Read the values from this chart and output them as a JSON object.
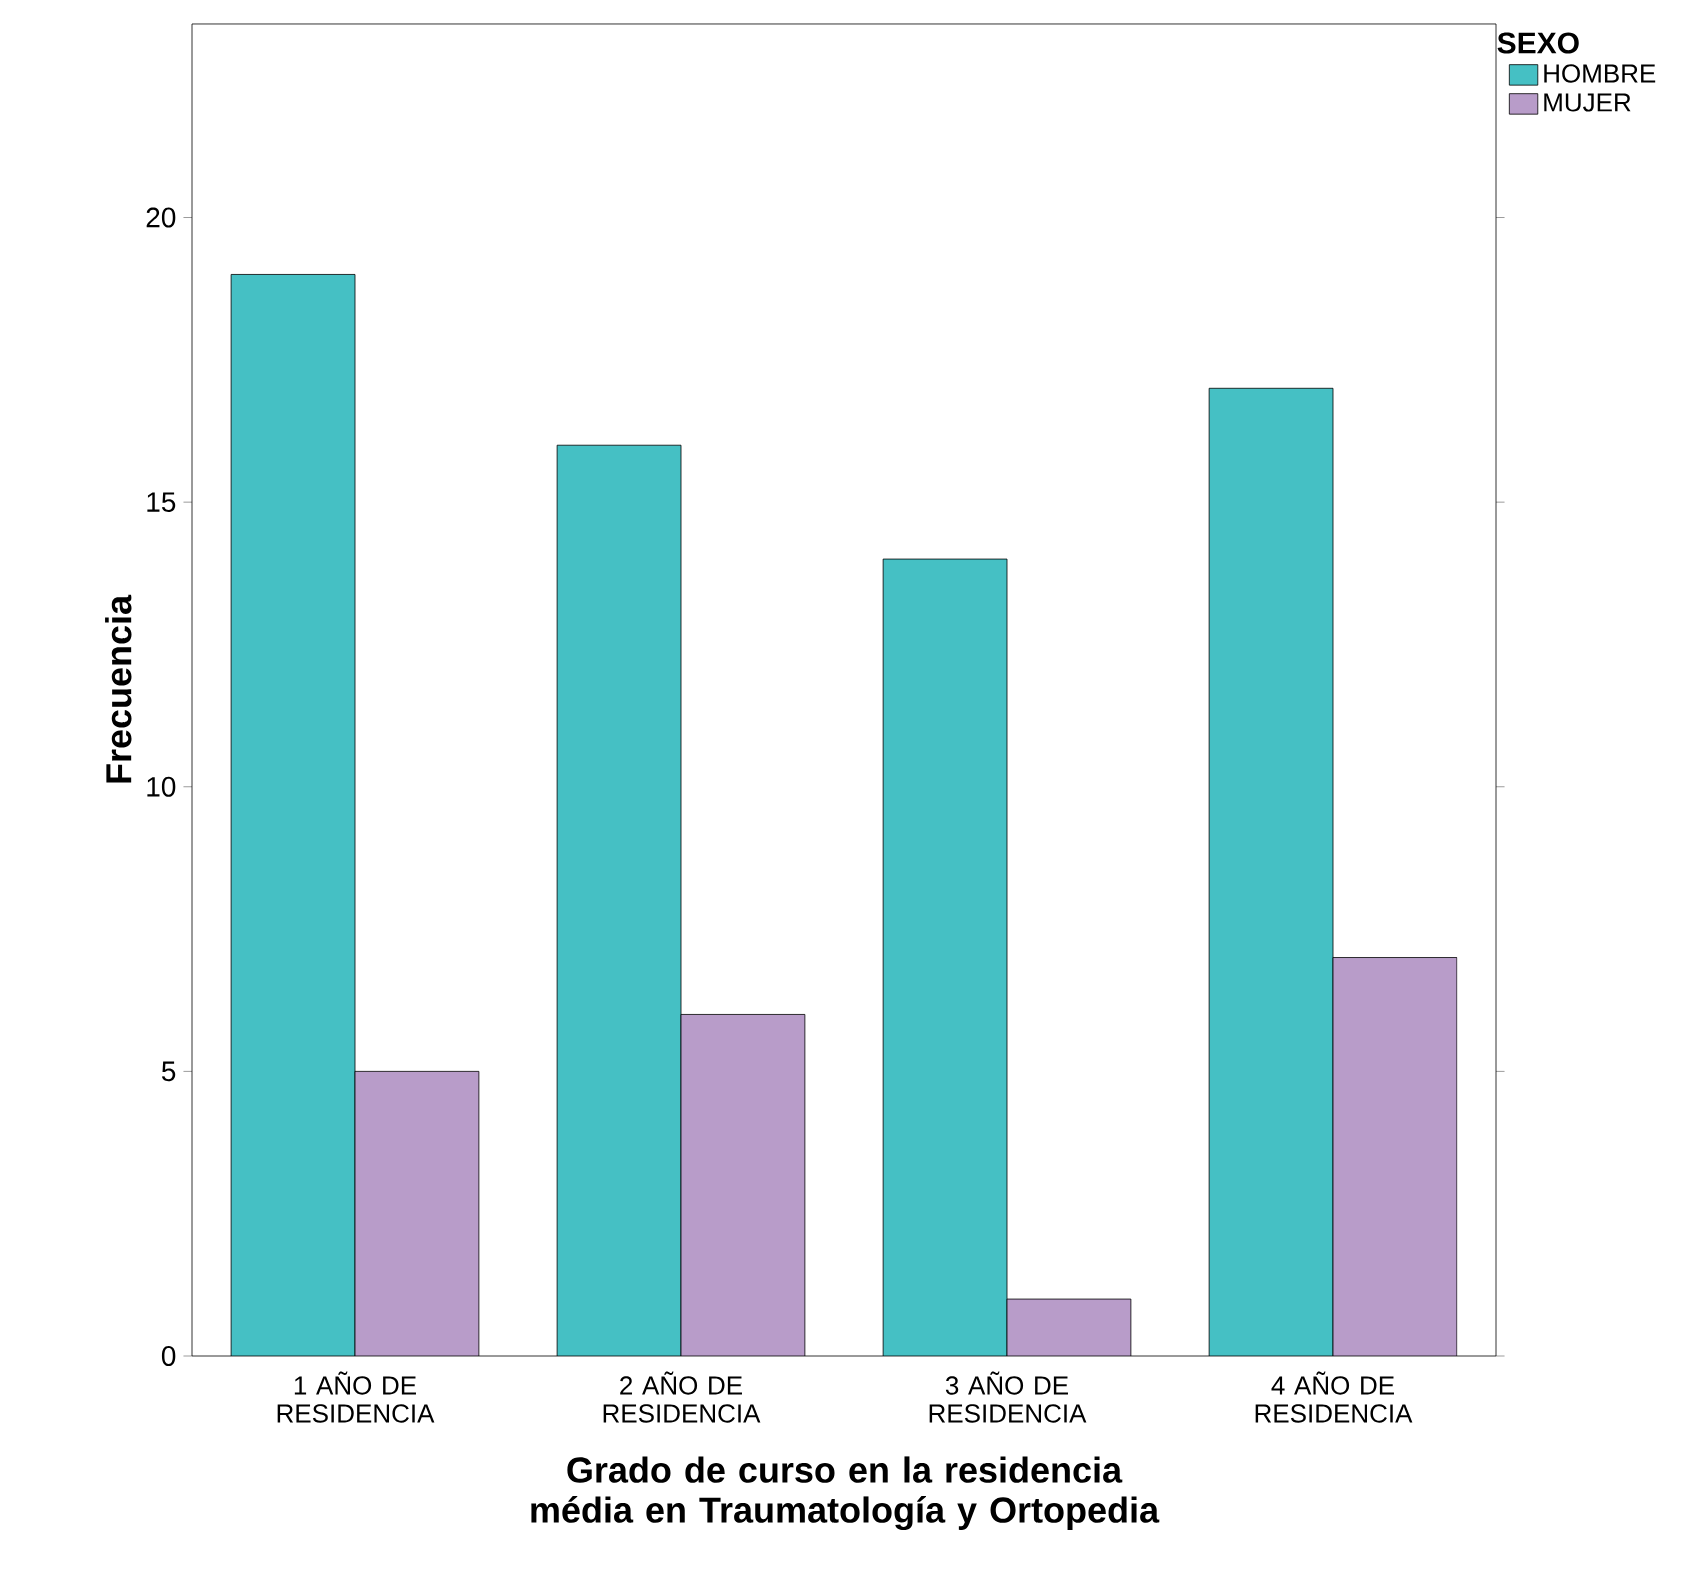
{
  "chart_data": {
    "type": "bar",
    "xlabel": "Grado de curso en la residencia média en Traumatología y Ortopedia",
    "ylabel": "Frecuencia",
    "legend_title": "SEXO",
    "legend": "top right",
    "categories": [
      "1 AÑO DE RESIDENCIA",
      "2 AÑO DE RESIDENCIA",
      "3 AÑO DE RESIDENCIA",
      "4 AÑO DE RESIDENCIA"
    ],
    "series": [
      {
        "name": "HOMBRE",
        "color": "#45c0c4",
        "values": [
          19,
          16,
          14,
          17
        ]
      },
      {
        "name": "MUJER",
        "color": "#b89cc9",
        "values": [
          5,
          6,
          1,
          7
        ]
      }
    ],
    "ylim": [
      0,
      23.4
    ],
    "yticks": [
      0,
      5,
      10,
      15,
      20
    ]
  }
}
